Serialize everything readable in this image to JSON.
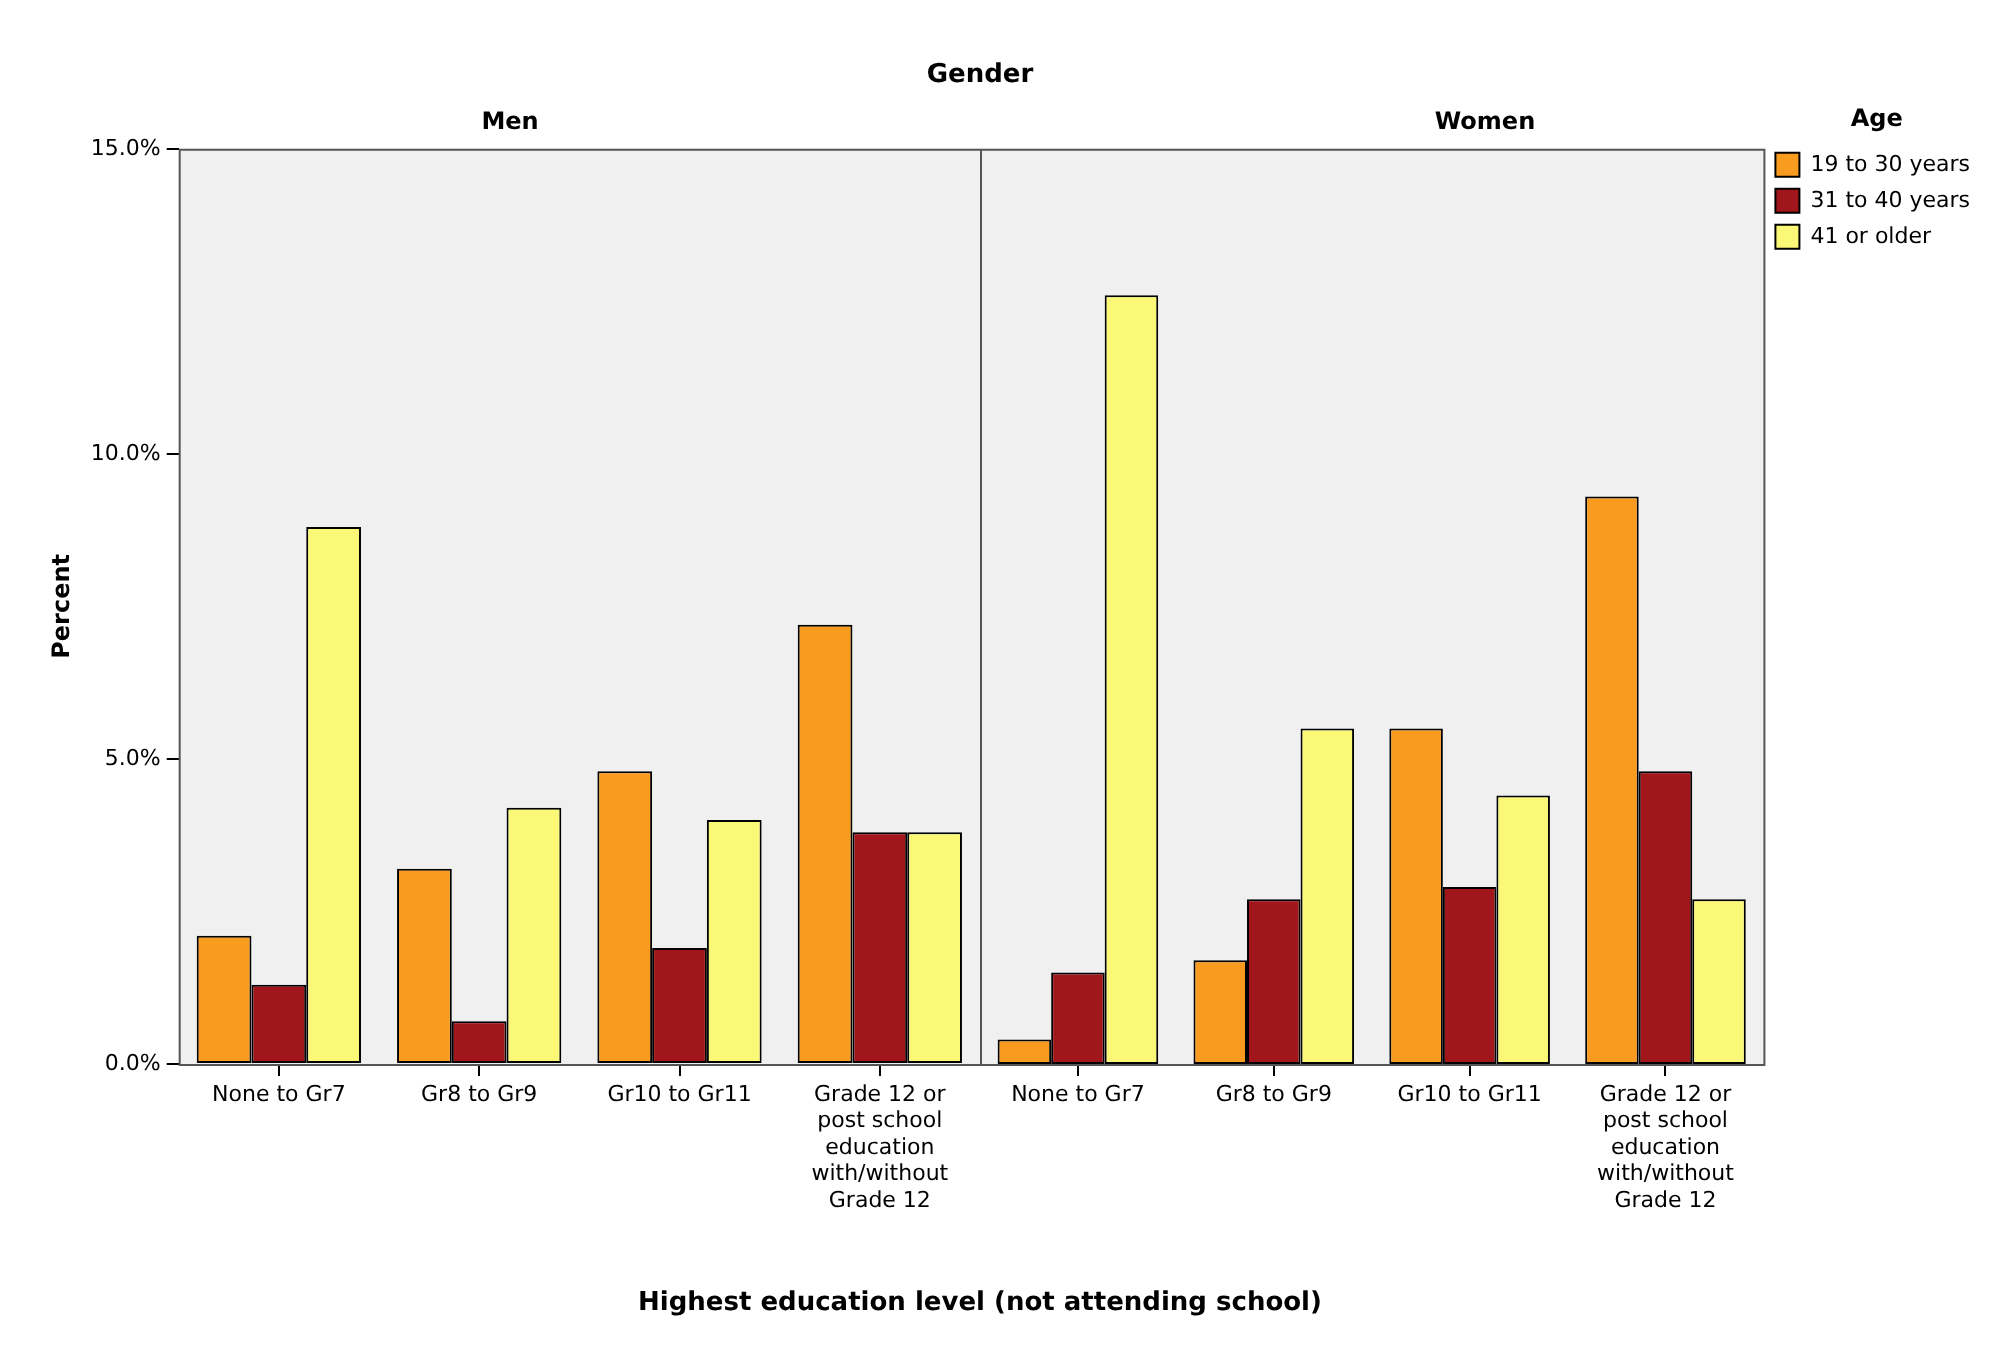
{
  "chart_data": [
    {
      "type": "bar",
      "title": "Men",
      "xlabel": "Highest education level (not attending school)",
      "ylabel": "Percent",
      "annotations": [
        "Gender"
      ],
      "categories": [
        "None to Gr7",
        "Gr8 to Gr9",
        "Gr10 to Gr11",
        "Grade 12 or post school education with/without Grade 12"
      ],
      "series": [
        {
          "color": "#f99b1f",
          "values": [
            2.1,
            3.2,
            4.8,
            7.2
          ]
        },
        {
          "color": "#a0161a",
          "values": [
            1.3,
            0.7,
            1.9,
            3.8
          ]
        },
        {
          "color": "#fbf877",
          "values": [
            8.8,
            4.2,
            4.0,
            3.8
          ]
        }
      ],
      "ylim": [
        0,
        15
      ],
      "yticks": [
        {
          "value": 0,
          "label": "0.0%"
        },
        {
          "value": 5,
          "label": "5.0%"
        },
        {
          "value": 10,
          "label": "10.0%"
        },
        {
          "value": 15,
          "label": "15.0%"
        }
      ],
      "grid": false,
      "legend": false
    },
    {
      "type": "bar",
      "title": "Women",
      "legend_title": "Age",
      "categories": [
        "None to Gr7",
        "Gr8 to Gr9",
        "Gr10 to Gr11",
        "Grade 12 or post school education with/without Grade 12"
      ],
      "series": [
        {
          "name": "19 to 30 years",
          "color": "#f99b1f",
          "values": [
            0.4,
            1.7,
            5.5,
            9.3
          ]
        },
        {
          "name": "31 to 40 years",
          "color": "#a0161a",
          "values": [
            1.5,
            2.7,
            2.9,
            4.8
          ]
        },
        {
          "name": "41 or older",
          "color": "#fbf877",
          "values": [
            12.6,
            5.5,
            4.4,
            2.7
          ]
        }
      ],
      "ylim": [
        0,
        15
      ],
      "grid": false,
      "legend": "right",
      "tick_labels": "x"
    }
  ]
}
